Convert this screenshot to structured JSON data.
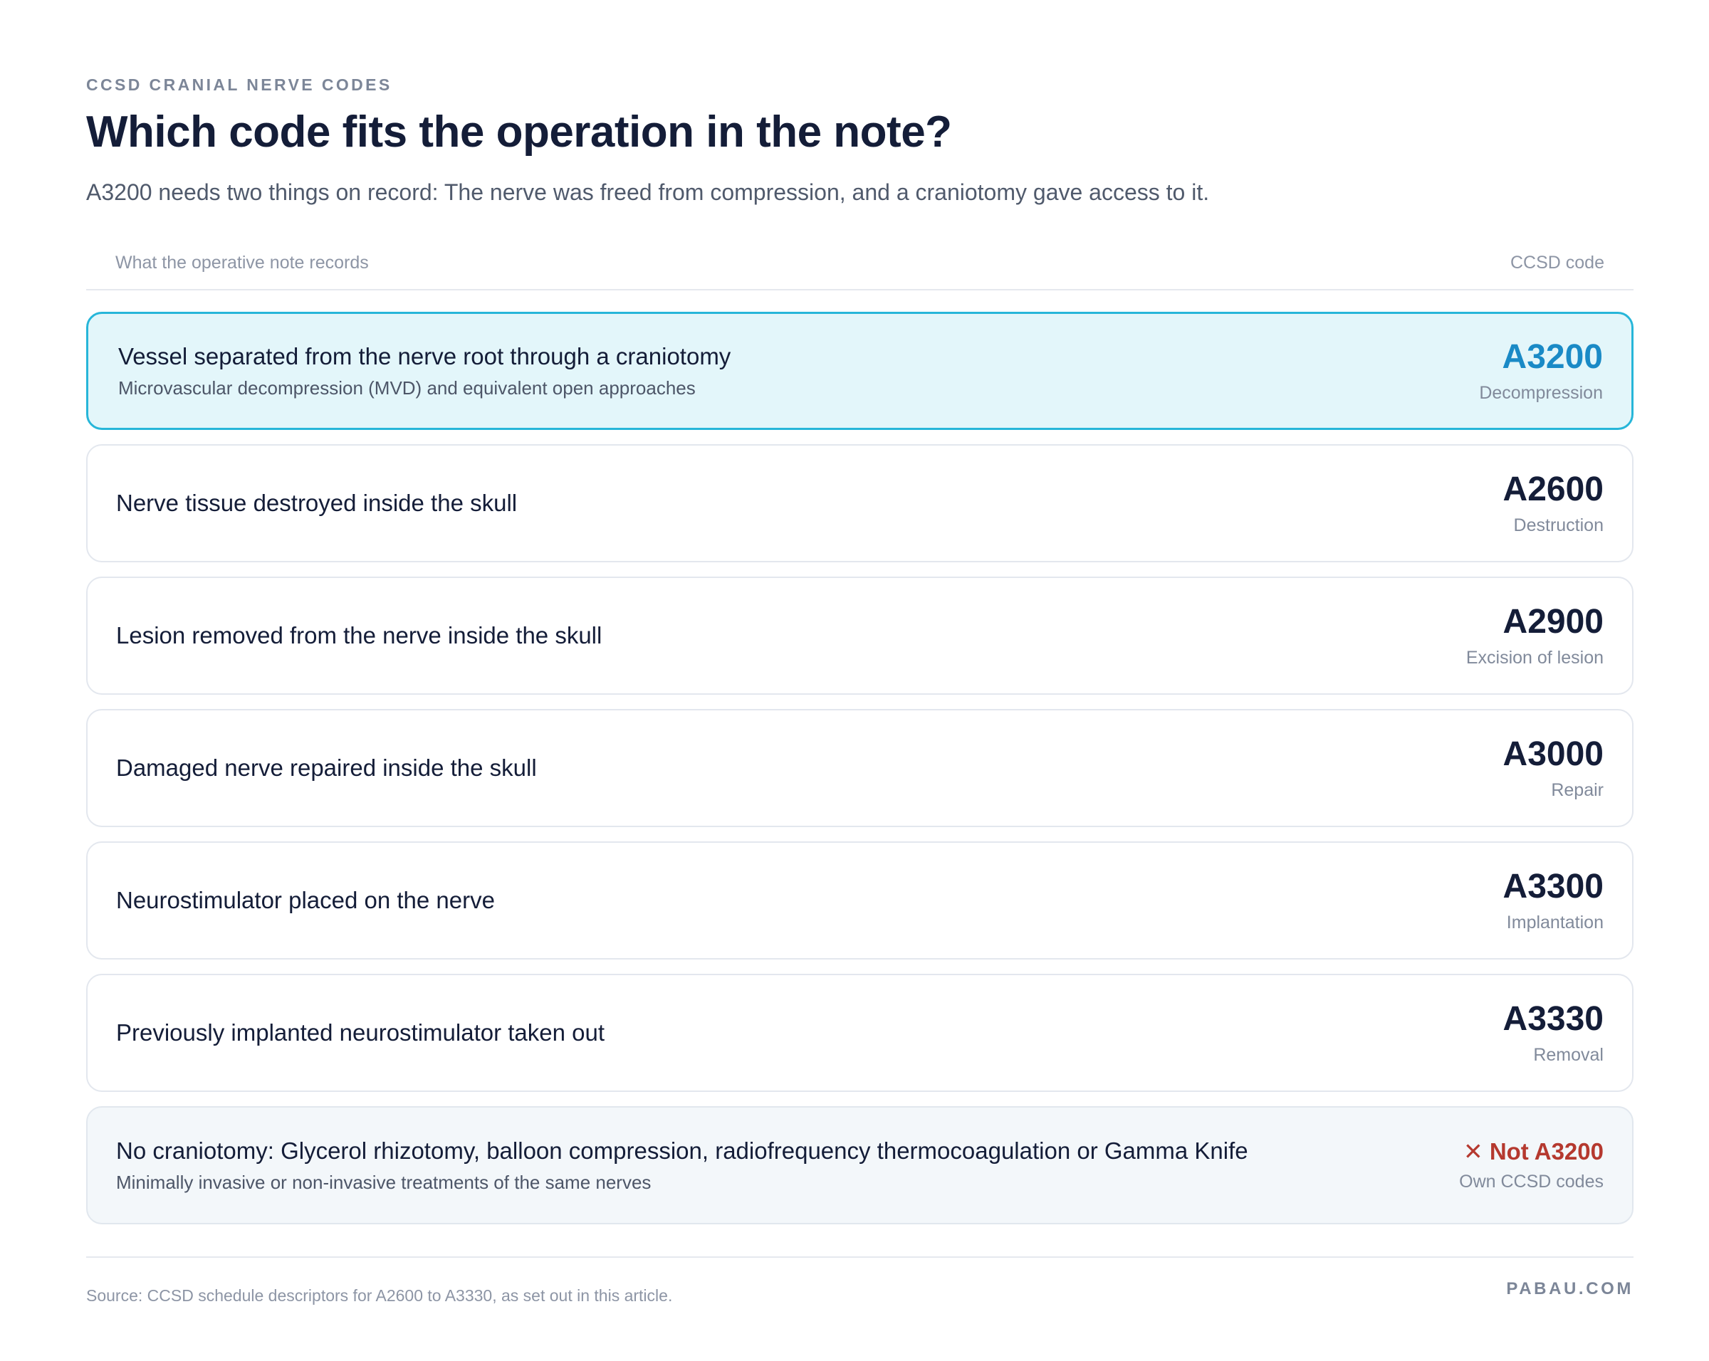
{
  "header": {
    "eyebrow": "CCSD CRANIAL NERVE CODES",
    "title": "Which code fits the operation in the note?",
    "subtitle": "A3200 needs two things on record: The nerve was freed from compression, and a craniotomy gave access to it."
  },
  "table": {
    "col_left": "What the operative note records",
    "col_right": "CCSD code",
    "rows": [
      {
        "main": "Vessel separated from the nerve root through a craniotomy",
        "sub": "Microvascular decompression (MVD) and equivalent open approaches",
        "code": "A3200",
        "type": "Decompression",
        "state": "highlight"
      },
      {
        "main": "Nerve tissue destroyed inside the skull",
        "code": "A2600",
        "type": "Destruction"
      },
      {
        "main": "Lesion removed from the nerve inside the skull",
        "code": "A2900",
        "type": "Excision of lesion"
      },
      {
        "main": "Damaged nerve repaired inside the skull",
        "code": "A3000",
        "type": "Repair"
      },
      {
        "main": "Neurostimulator placed on the nerve",
        "code": "A3300",
        "type": "Implantation"
      },
      {
        "main": "Previously implanted neurostimulator taken out",
        "code": "A3330",
        "type": "Removal"
      },
      {
        "main": "No craniotomy: Glycerol rhizotomy, balloon compression, radiofrequency thermocoagulation or Gamma Knife",
        "sub": "Minimally invasive or non-invasive treatments of the same nerves",
        "code": "✕ Not A3200",
        "type": "Own CCSD codes",
        "state": "muted"
      }
    ]
  },
  "footer": {
    "source": "Source: CCSD schedule descriptors for A2600 to A3330, as set out in this article.",
    "brand": "PABAU.COM"
  },
  "colors": {
    "highlight_border": "#27b6d9",
    "highlight_bg": "#e3f6fa",
    "highlight_code": "#1a8ac6",
    "reject": "#b5392f"
  }
}
